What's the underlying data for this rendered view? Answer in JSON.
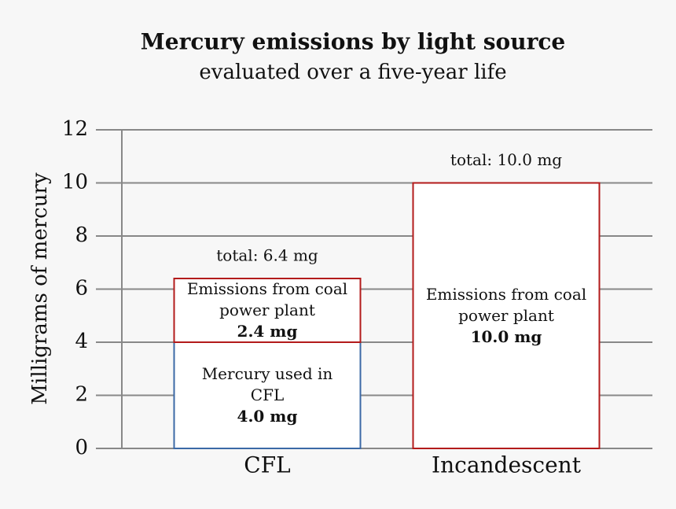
{
  "chart_data": {
    "type": "stacked_bar",
    "title": "Mercury emissions by light source",
    "subtitle": "evaluated over a five-year life",
    "y_label": "Milligrams of mercury",
    "categories": [
      "CFL",
      "Incandescent"
    ],
    "series": [
      {
        "name": "Mercury used in CFL",
        "color": "#3b69a6",
        "values": [
          4.0,
          null
        ],
        "value_labels": [
          "4.0 mg",
          null
        ]
      },
      {
        "name": "Emissions from coal power plant",
        "color": "#b31b1b",
        "values": [
          2.4,
          10.0
        ],
        "value_labels": [
          "2.4 mg",
          "10.0 mg"
        ]
      }
    ],
    "annotations": [
      "total: 6.4 mg",
      "total: 10.0 mg"
    ],
    "ylim": [
      0,
      12
    ],
    "yticks": [
      0,
      2,
      4,
      6,
      8,
      10,
      12
    ],
    "grid": true
  }
}
